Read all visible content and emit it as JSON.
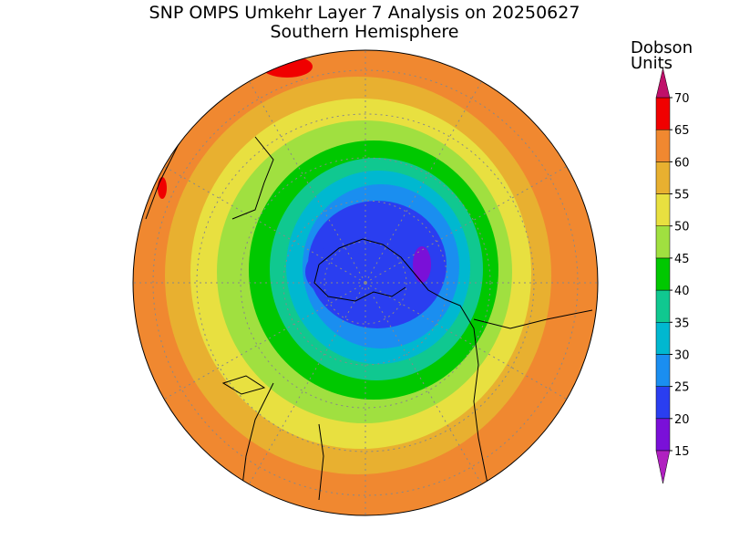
{
  "map": {
    "title": "SNP OMPS Umkehr Layer 7 Analysis on 20250627",
    "subtitle": "Southern Hemisphere",
    "colorbar": {
      "title_line1": "Dobson",
      "title_line2": "Units",
      "ticks": [
        15,
        20,
        25,
        30,
        35,
        40,
        45,
        50,
        55,
        60,
        65,
        70
      ],
      "colors": [
        "#7a10d8",
        "#2a3ef0",
        "#1a8ef0",
        "#00b8d0",
        "#10c890",
        "#00c800",
        "#a0e040",
        "#e8e040",
        "#e8b030",
        "#f08830",
        "#f00000"
      ],
      "under_color": "#b020c0",
      "over_color": "#c0106a"
    }
  }
}
